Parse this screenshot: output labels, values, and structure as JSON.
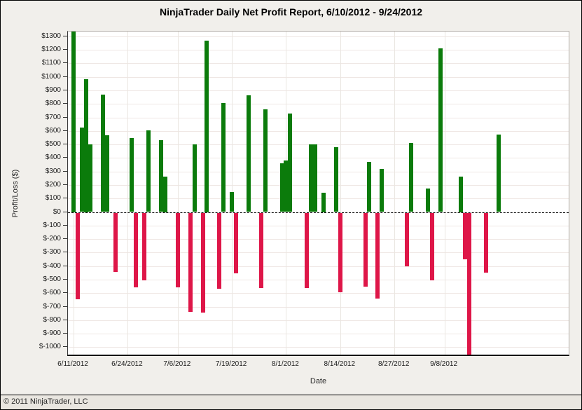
{
  "header": {
    "title": "NinjaTrader Daily Net Profit Report, 6/10/2012 - 9/24/2012"
  },
  "footer": {
    "copyright": "© 2011 NinjaTrader, LLC"
  },
  "chart_data": {
    "type": "bar",
    "title": "NinjaTrader Daily Net Profit Report, 6/10/2012 - 9/24/2012",
    "xlabel": "Date",
    "ylabel": "Profit/Loss ($)",
    "date_range": {
      "start": "6/10/2012",
      "end": "9/24/2012"
    },
    "y_axis": {
      "tick_min": -1000,
      "tick_max": 1300,
      "tick_step": 100,
      "max_edge": 1335,
      "min_edge": -1055,
      "tick_prefix": "$"
    },
    "x_axis": {
      "ticks": [
        "6/11/2012",
        "6/24/2012",
        "7/6/2012",
        "7/19/2012",
        "8/1/2012",
        "8/14/2012",
        "8/27/2012",
        "9/8/2012"
      ]
    },
    "grid": {
      "horizontal_step": 100,
      "vertical": "at-date-ticks"
    },
    "zero_line": "dashed-black",
    "legend": "none",
    "colors": {
      "profit": "#0b7b0b",
      "loss": "#de1648"
    },
    "bars": [
      {
        "date": "6/11/2012",
        "value": 1335
      },
      {
        "date": "6/12/2012",
        "value": -640
      },
      {
        "date": "6/13/2012",
        "value": 625
      },
      {
        "date": "6/14/2012",
        "value": 985
      },
      {
        "date": "6/15/2012",
        "value": 500
      },
      {
        "date": "6/18/2012",
        "value": 870
      },
      {
        "date": "6/19/2012",
        "value": 570
      },
      {
        "date": "6/21/2012",
        "value": -440
      },
      {
        "date": "6/25/2012",
        "value": 545
      },
      {
        "date": "6/26/2012",
        "value": -550
      },
      {
        "date": "6/28/2012",
        "value": -500
      },
      {
        "date": "6/29/2012",
        "value": 605
      },
      {
        "date": "7/2/2012",
        "value": 530
      },
      {
        "date": "7/3/2012",
        "value": 260
      },
      {
        "date": "7/6/2012",
        "value": -550
      },
      {
        "date": "7/9/2012",
        "value": -735
      },
      {
        "date": "7/10/2012",
        "value": 500
      },
      {
        "date": "7/12/2012",
        "value": -740
      },
      {
        "date": "7/13/2012",
        "value": 1270
      },
      {
        "date": "7/16/2012",
        "value": -560
      },
      {
        "date": "7/17/2012",
        "value": 805
      },
      {
        "date": "7/19/2012",
        "value": 150
      },
      {
        "date": "7/20/2012",
        "value": -450
      },
      {
        "date": "7/23/2012",
        "value": 865
      },
      {
        "date": "7/26/2012",
        "value": -555
      },
      {
        "date": "7/27/2012",
        "value": 760
      },
      {
        "date": "7/31/2012",
        "value": 360
      },
      {
        "date": "8/1/2012",
        "value": 380
      },
      {
        "date": "8/2/2012",
        "value": 730
      },
      {
        "date": "8/6/2012",
        "value": -555
      },
      {
        "date": "8/7/2012",
        "value": 500
      },
      {
        "date": "8/8/2012",
        "value": 500
      },
      {
        "date": "8/10/2012",
        "value": 145
      },
      {
        "date": "8/13/2012",
        "value": 480
      },
      {
        "date": "8/14/2012",
        "value": -590
      },
      {
        "date": "8/20/2012",
        "value": -545
      },
      {
        "date": "8/21/2012",
        "value": 370
      },
      {
        "date": "8/23/2012",
        "value": -635
      },
      {
        "date": "8/24/2012",
        "value": 320
      },
      {
        "date": "8/30/2012",
        "value": -395
      },
      {
        "date": "8/31/2012",
        "value": 510
      },
      {
        "date": "9/4/2012",
        "value": 175
      },
      {
        "date": "9/5/2012",
        "value": -500
      },
      {
        "date": "9/7/2012",
        "value": 1210
      },
      {
        "date": "9/12/2012",
        "value": 260
      },
      {
        "date": "9/13/2012",
        "value": -345
      },
      {
        "date": "9/14/2012",
        "value": -1055
      },
      {
        "date": "9/18/2012",
        "value": -445
      },
      {
        "date": "9/21/2012",
        "value": 575
      }
    ]
  }
}
